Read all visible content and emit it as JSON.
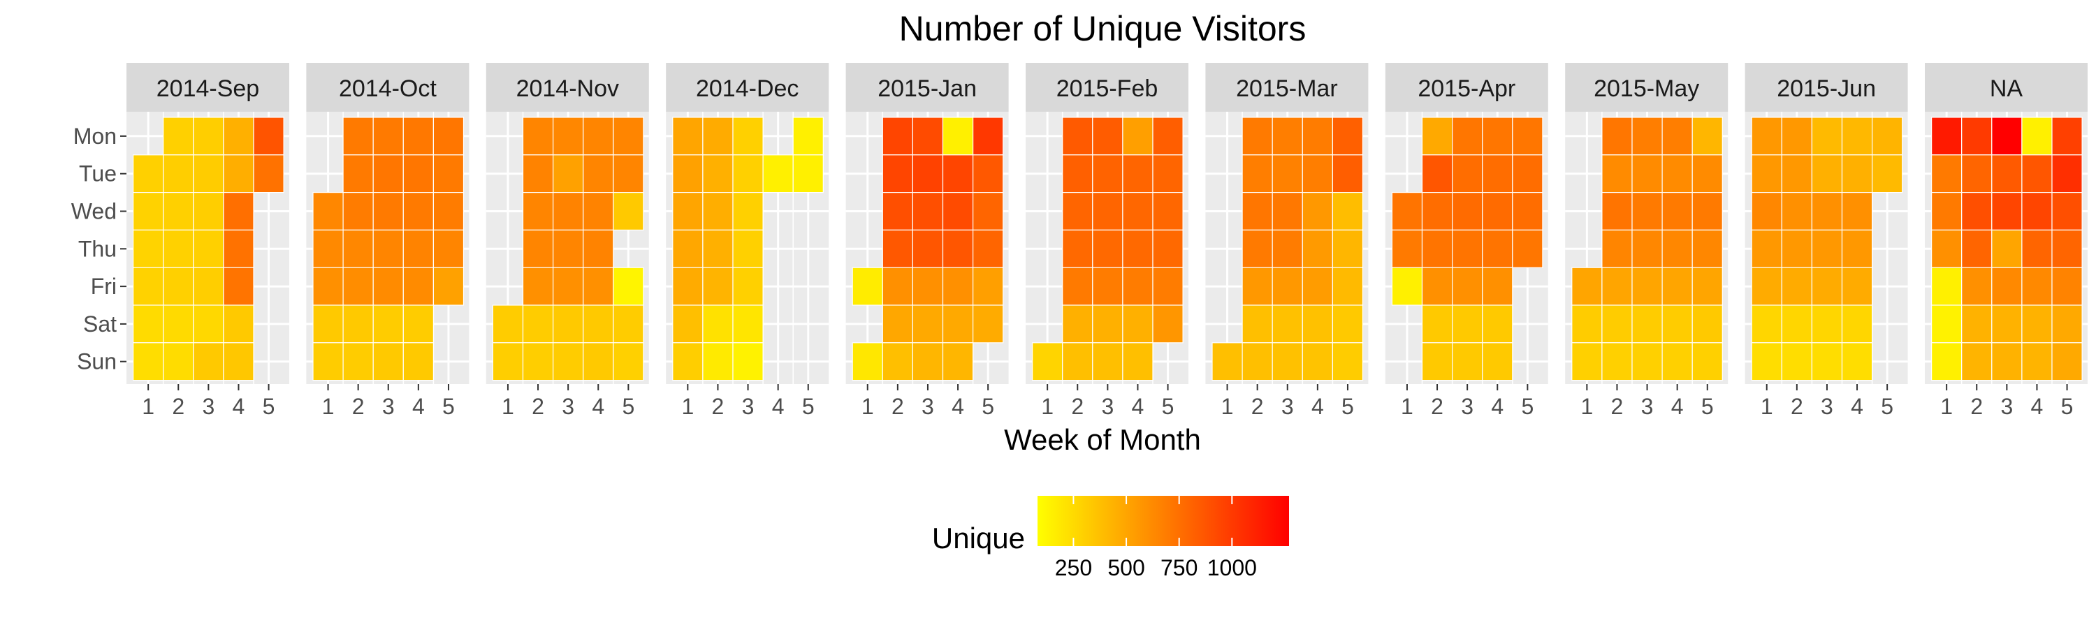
{
  "chart_data": {
    "type": "heatmap",
    "title": "Number of Unique Visitors",
    "xlabel": "Week of Month",
    "ylabel": "",
    "x_ticks": [
      1,
      2,
      3,
      4,
      5
    ],
    "y_ticks": [
      "Mon",
      "Tue",
      "Wed",
      "Thu",
      "Fri",
      "Sat",
      "Sun"
    ],
    "legend": {
      "title": "Unique",
      "ticks": [
        250,
        500,
        750,
        1000
      ],
      "range": [
        80,
        1270
      ],
      "colors": [
        "#ffff00",
        "#ff0000"
      ],
      "placement": "bottom"
    },
    "grid": true,
    "panels": [
      {
        "label": "2014-Sep",
        "cells": [
          [
            null,
            300,
            310,
            450,
            880
          ],
          [
            300,
            310,
            320,
            460,
            740
          ],
          [
            290,
            300,
            310,
            750,
            null
          ],
          [
            285,
            295,
            300,
            740,
            null
          ],
          [
            290,
            300,
            310,
            730,
            null
          ],
          [
            250,
            255,
            260,
            330,
            null
          ],
          [
            240,
            245,
            330,
            340,
            null
          ]
        ]
      },
      {
        "label": "2014-Oct",
        "cells": [
          [
            null,
            700,
            700,
            710,
            720
          ],
          [
            null,
            700,
            720,
            720,
            700
          ],
          [
            640,
            690,
            700,
            700,
            690
          ],
          [
            630,
            640,
            650,
            660,
            650
          ],
          [
            600,
            610,
            620,
            620,
            520
          ],
          [
            330,
            330,
            320,
            320,
            null
          ],
          [
            320,
            320,
            330,
            330,
            null
          ]
        ]
      },
      {
        "label": "2014-Nov",
        "cells": [
          [
            null,
            650,
            640,
            650,
            650
          ],
          [
            null,
            660,
            520,
            650,
            650
          ],
          [
            null,
            650,
            660,
            660,
            330
          ],
          [
            null,
            650,
            650,
            660,
            null
          ],
          [
            null,
            600,
            600,
            600,
            130
          ],
          [
            320,
            320,
            330,
            330,
            320
          ],
          [
            310,
            310,
            320,
            330,
            300
          ]
        ]
      },
      {
        "label": "2014-Dec",
        "cells": [
          [
            500,
            470,
            300,
            null,
            150
          ],
          [
            520,
            450,
            300,
            150,
            150
          ],
          [
            500,
            460,
            300,
            null,
            null
          ],
          [
            490,
            450,
            300,
            null,
            null
          ],
          [
            470,
            430,
            300,
            null,
            null
          ],
          [
            380,
            220,
            200,
            null,
            null
          ],
          [
            310,
            180,
            140,
            null,
            null
          ]
        ]
      },
      {
        "label": "2015-Jan",
        "cells": [
          [
            null,
            950,
            920,
            150,
            1010
          ],
          [
            null,
            950,
            960,
            950,
            860
          ],
          [
            null,
            900,
            900,
            920,
            800
          ],
          [
            null,
            860,
            870,
            870,
            800
          ],
          [
            170,
            600,
            600,
            600,
            530
          ],
          [
            null,
            490,
            480,
            480,
            470
          ],
          [
            190,
            380,
            420,
            420,
            null
          ]
        ]
      },
      {
        "label": "2015-Feb",
        "cells": [
          [
            null,
            850,
            840,
            530,
            830
          ],
          [
            null,
            820,
            810,
            800,
            800
          ],
          [
            null,
            800,
            800,
            790,
            790
          ],
          [
            null,
            780,
            780,
            780,
            780
          ],
          [
            null,
            700,
            690,
            690,
            690
          ],
          [
            null,
            450,
            450,
            450,
            570
          ],
          [
            280,
            380,
            380,
            380,
            null
          ]
        ]
      },
      {
        "label": "2015-Mar",
        "cells": [
          [
            null,
            700,
            680,
            690,
            820
          ],
          [
            null,
            680,
            670,
            680,
            830
          ],
          [
            null,
            720,
            710,
            560,
            390
          ],
          [
            null,
            700,
            690,
            550,
            420
          ],
          [
            null,
            560,
            560,
            540,
            400
          ],
          [
            null,
            380,
            370,
            370,
            330
          ],
          [
            380,
            380,
            370,
            360,
            320
          ]
        ]
      },
      {
        "label": "2015-Apr",
        "cells": [
          [
            null,
            480,
            720,
            720,
            720
          ],
          [
            null,
            870,
            760,
            760,
            760
          ],
          [
            730,
            760,
            770,
            770,
            760
          ],
          [
            700,
            730,
            730,
            730,
            720
          ],
          [
            150,
            600,
            600,
            600,
            null
          ],
          [
            null,
            330,
            330,
            330,
            null
          ],
          [
            null,
            330,
            330,
            330,
            null
          ]
        ]
      },
      {
        "label": "2015-May",
        "cells": [
          [
            null,
            720,
            680,
            680,
            420
          ],
          [
            null,
            620,
            620,
            620,
            620
          ],
          [
            null,
            730,
            700,
            700,
            700
          ],
          [
            null,
            650,
            640,
            640,
            640
          ],
          [
            500,
            500,
            500,
            500,
            500
          ],
          [
            320,
            320,
            320,
            320,
            330
          ],
          [
            300,
            300,
            300,
            300,
            300
          ]
        ]
      },
      {
        "label": "2015-Jun",
        "cells": [
          [
            560,
            560,
            400,
            410,
            430
          ],
          [
            560,
            560,
            450,
            450,
            400
          ],
          [
            640,
            600,
            600,
            600,
            null
          ],
          [
            560,
            560,
            560,
            560,
            null
          ],
          [
            470,
            470,
            470,
            470,
            null
          ],
          [
            270,
            270,
            270,
            270,
            null
          ],
          [
            240,
            240,
            240,
            240,
            null
          ]
        ]
      },
      {
        "label": "NA",
        "cells": [
          [
            1150,
            1000,
            1270,
            150,
            970
          ],
          [
            700,
            800,
            850,
            870,
            1050
          ],
          [
            700,
            900,
            950,
            950,
            900
          ],
          [
            600,
            800,
            500,
            800,
            800
          ],
          [
            150,
            600,
            630,
            630,
            660
          ],
          [
            140,
            440,
            440,
            440,
            480
          ],
          [
            150,
            430,
            440,
            430,
            480
          ]
        ]
      }
    ]
  }
}
